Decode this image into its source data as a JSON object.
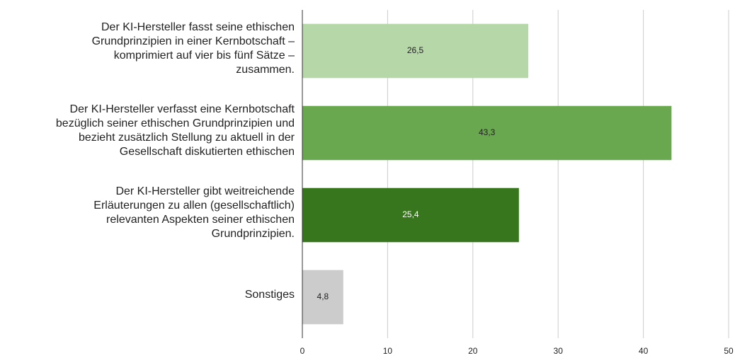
{
  "chart_data": {
    "type": "bar",
    "orientation": "horizontal",
    "categories": [
      "Der KI-Hersteller fasst seine ethischen\nGrundprinzipien in einer Kernbotschaft –\nkomprimiert auf vier bis fünf Sätze –\nzusammen.",
      "Der KI-Hersteller verfasst eine Kernbotschaft\nbezüglich seiner ethischen Grundprinzipien und\nbezieht zusätzlich Stellung zu aktuell in der\nGesellschaft diskutierten ethischen",
      "Der KI-Hersteller gibt weitreichende\nErläuterungen zu allen (gesellschaftlich)\nrelevanten Aspekten seiner ethischen\nGrundprinzipien.",
      "Sonstiges"
    ],
    "values": [
      26.5,
      43.3,
      25.4,
      4.8
    ],
    "value_labels": [
      "26,5",
      "43,3",
      "25,4",
      "4,8"
    ],
    "colors": [
      "#b6d7a8",
      "#6aa84f",
      "#38761d",
      "#cccccc"
    ],
    "xlim": [
      0,
      50
    ],
    "xticks": [
      0,
      10,
      20,
      30,
      40,
      50
    ],
    "grid": true
  }
}
